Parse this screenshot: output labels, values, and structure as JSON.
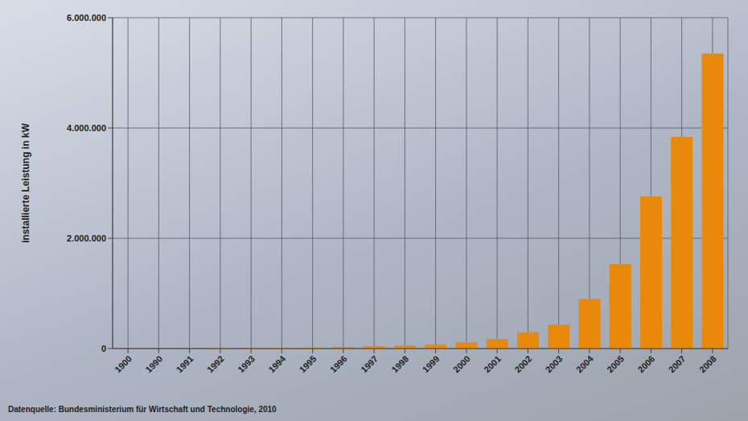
{
  "chart_data": {
    "type": "bar",
    "y_label": "installierte Leistung in kW",
    "source": "Datenquelle: Bundesministerium für Wirtschaft und Technologie, 2010",
    "categories": [
      "1900",
      "1990",
      "1991",
      "1992",
      "1993",
      "1994",
      "1995",
      "1996",
      "1997",
      "1998",
      "1999",
      "2000",
      "2001",
      "2002",
      "2003",
      "2004",
      "2005",
      "2006",
      "2007",
      "2008"
    ],
    "values": [
      2000,
      2000,
      3000,
      6000,
      9000,
      12000,
      18000,
      28000,
      42000,
      54000,
      70000,
      114000,
      176000,
      296000,
      435000,
      900000,
      1530000,
      2760000,
      3840000,
      5350000
    ],
    "color": "#e8890c",
    "ylim": [
      0,
      6000000
    ],
    "yticks": [
      0,
      {
        "value": 2000000,
        "label": "2.000.000"
      },
      {
        "value": 4000000,
        "label": "4.000.000"
      },
      {
        "value": 6000000,
        "label": "6.000.000"
      }
    ],
    "grid": true
  }
}
